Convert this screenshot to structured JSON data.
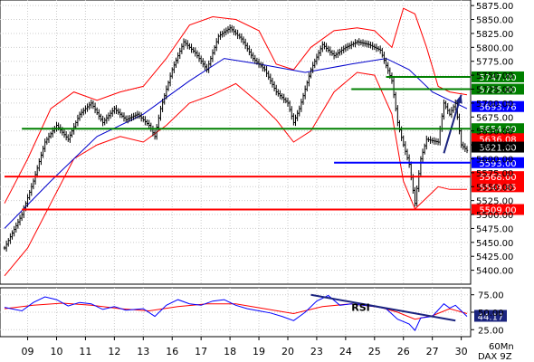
{
  "chart_data": {
    "type": "candlestick",
    "instrument_label": "DAX 9Z",
    "timeframe_label": "60Mn",
    "price_axis": {
      "ylim": [
        5375,
        5885
      ],
      "ticks": [
        5400,
        5425,
        5450,
        5475,
        5500,
        5525,
        5550,
        5575,
        5600,
        5625,
        5650,
        5675,
        5700,
        5725,
        5750,
        5775,
        5800,
        5825,
        5850,
        5875
      ],
      "tick_labels": [
        "5400.00",
        "5425.00",
        "5450.00",
        "5475.00",
        "5500.00",
        "5525.00",
        "5550.00",
        "5575.00",
        "5600.00",
        "5625.00",
        "5650.00",
        "5675.00",
        "5700.00",
        "5725.00",
        "5750.00",
        "5775.00",
        "5800.00",
        "5825.00",
        "5850.00",
        "5875.00"
      ]
    },
    "x_axis": {
      "day_labels": [
        "09",
        "10",
        "11",
        "12",
        "13",
        "16",
        "17",
        "18",
        "19",
        "20",
        "23",
        "24",
        "25",
        "26",
        "27",
        "30"
      ]
    },
    "price_path": [
      [
        0,
        5440
      ],
      [
        3,
        5500
      ],
      [
        5,
        5560
      ],
      [
        7,
        5630
      ],
      [
        9,
        5660
      ],
      [
        11,
        5635
      ],
      [
        13,
        5680
      ],
      [
        15,
        5700
      ],
      [
        17,
        5665
      ],
      [
        19,
        5690
      ],
      [
        21,
        5670
      ],
      [
        23,
        5680
      ],
      [
        25,
        5660
      ],
      [
        26,
        5640
      ],
      [
        27,
        5690
      ],
      [
        29,
        5760
      ],
      [
        31,
        5810
      ],
      [
        33,
        5790
      ],
      [
        35,
        5760
      ],
      [
        37,
        5820
      ],
      [
        39,
        5835
      ],
      [
        41,
        5815
      ],
      [
        43,
        5780
      ],
      [
        45,
        5760
      ],
      [
        47,
        5720
      ],
      [
        49,
        5700
      ],
      [
        50,
        5665
      ],
      [
        51,
        5690
      ],
      [
        53,
        5760
      ],
      [
        55,
        5805
      ],
      [
        57,
        5785
      ],
      [
        59,
        5800
      ],
      [
        61,
        5810
      ],
      [
        63,
        5805
      ],
      [
        65,
        5795
      ],
      [
        67,
        5740
      ],
      [
        68,
        5665
      ],
      [
        69,
        5625
      ],
      [
        70,
        5590
      ],
      [
        71,
        5520
      ],
      [
        72,
        5600
      ],
      [
        73,
        5635
      ],
      [
        75,
        5630
      ],
      [
        76,
        5700
      ],
      [
        77,
        5680
      ],
      [
        78,
        5700
      ],
      [
        79,
        5625
      ],
      [
        80,
        5615
      ]
    ],
    "moving_average": [
      [
        0,
        5475
      ],
      [
        8,
        5560
      ],
      [
        16,
        5640
      ],
      [
        24,
        5680
      ],
      [
        32,
        5740
      ],
      [
        38,
        5780
      ],
      [
        44,
        5770
      ],
      [
        52,
        5755
      ],
      [
        60,
        5770
      ],
      [
        66,
        5780
      ],
      [
        70,
        5760
      ],
      [
        74,
        5720
      ],
      [
        80,
        5690
      ]
    ],
    "bollinger_upper": [
      [
        0,
        5520
      ],
      [
        4,
        5600
      ],
      [
        8,
        5690
      ],
      [
        12,
        5720
      ],
      [
        16,
        5705
      ],
      [
        20,
        5720
      ],
      [
        24,
        5730
      ],
      [
        28,
        5780
      ],
      [
        32,
        5840
      ],
      [
        36,
        5855
      ],
      [
        40,
        5850
      ],
      [
        44,
        5830
      ],
      [
        47,
        5770
      ],
      [
        50,
        5760
      ],
      [
        53,
        5800
      ],
      [
        57,
        5830
      ],
      [
        61,
        5835
      ],
      [
        64,
        5830
      ],
      [
        67,
        5800
      ],
      [
        69,
        5870
      ],
      [
        71,
        5860
      ],
      [
        73,
        5800
      ],
      [
        75,
        5730
      ],
      [
        77,
        5720
      ],
      [
        80,
        5715
      ]
    ],
    "bollinger_lower": [
      [
        0,
        5390
      ],
      [
        4,
        5440
      ],
      [
        8,
        5520
      ],
      [
        12,
        5600
      ],
      [
        16,
        5625
      ],
      [
        20,
        5640
      ],
      [
        24,
        5630
      ],
      [
        28,
        5660
      ],
      [
        32,
        5700
      ],
      [
        36,
        5715
      ],
      [
        40,
        5735
      ],
      [
        44,
        5700
      ],
      [
        47,
        5670
      ],
      [
        50,
        5630
      ],
      [
        53,
        5650
      ],
      [
        57,
        5720
      ],
      [
        61,
        5755
      ],
      [
        64,
        5750
      ],
      [
        67,
        5680
      ],
      [
        69,
        5560
      ],
      [
        71,
        5510
      ],
      [
        73,
        5530
      ],
      [
        75,
        5550
      ],
      [
        77,
        5545
      ],
      [
        80,
        5545
      ]
    ],
    "support_resistance_lines": [
      {
        "price": 5747.0,
        "label": "5747.00",
        "color": "#008000",
        "x_from": 66
      },
      {
        "price": 5725.0,
        "label": "5725.00",
        "color": "#008000",
        "x_from": 60
      },
      {
        "price": 5693.76,
        "label": "5693.76",
        "color": "#0000ff",
        "x_from": null
      },
      {
        "price": 5654.0,
        "label": "5654.00",
        "color": "#008000",
        "x_from": 3
      },
      {
        "price": 5636.08,
        "label": "5636.08",
        "color": "#ff0000",
        "x_from": null
      },
      {
        "price": 5621.0,
        "label": "5621.00",
        "color": "#000000",
        "x_from": null
      },
      {
        "price": 5593.0,
        "label": "5593.00",
        "color": "#0000ff",
        "x_from": 57
      },
      {
        "price": 5568.0,
        "label": "5568.00",
        "color": "#ff0000",
        "x_from": 0
      },
      {
        "price": 5549.85,
        "label": "5549.85",
        "color": "#ff0000",
        "x_from": null
      },
      {
        "price": 5509.0,
        "label": "5509.00",
        "color": "#ff0000",
        "x_from": 3
      }
    ],
    "arrow": {
      "from": [
        76,
        5610
      ],
      "to": [
        79,
        5715
      ],
      "color": "#1a237e"
    },
    "rsi_panel": {
      "label": "RSI",
      "ylim": [
        15,
        85
      ],
      "ticks": [
        25,
        50,
        75
      ],
      "tick_labels": [
        "25.00",
        "50.00",
        "75.00"
      ],
      "current_value": "44.17",
      "rsi_path": [
        [
          0,
          57
        ],
        [
          3,
          52
        ],
        [
          5,
          64
        ],
        [
          7,
          72
        ],
        [
          9,
          68
        ],
        [
          11,
          59
        ],
        [
          13,
          64
        ],
        [
          15,
          62
        ],
        [
          17,
          54
        ],
        [
          19,
          58
        ],
        [
          21,
          53
        ],
        [
          24,
          55
        ],
        [
          26,
          44
        ],
        [
          28,
          60
        ],
        [
          30,
          68
        ],
        [
          32,
          62
        ],
        [
          34,
          60
        ],
        [
          36,
          66
        ],
        [
          38,
          68
        ],
        [
          40,
          60
        ],
        [
          42,
          55
        ],
        [
          44,
          52
        ],
        [
          46,
          49
        ],
        [
          48,
          44
        ],
        [
          50,
          38
        ],
        [
          52,
          50
        ],
        [
          54,
          66
        ],
        [
          56,
          74
        ],
        [
          58,
          60
        ],
        [
          60,
          62
        ],
        [
          62,
          60
        ],
        [
          64,
          58
        ],
        [
          66,
          55
        ],
        [
          68,
          40
        ],
        [
          70,
          33
        ],
        [
          71,
          24
        ],
        [
          72,
          42
        ],
        [
          74,
          44
        ],
        [
          76,
          62
        ],
        [
          77,
          56
        ],
        [
          78,
          60
        ],
        [
          80,
          44
        ]
      ],
      "signal_path": [
        [
          0,
          55
        ],
        [
          5,
          60
        ],
        [
          10,
          63
        ],
        [
          15,
          60
        ],
        [
          20,
          55
        ],
        [
          25,
          52
        ],
        [
          30,
          58
        ],
        [
          35,
          62
        ],
        [
          40,
          62
        ],
        [
          45,
          55
        ],
        [
          50,
          48
        ],
        [
          55,
          58
        ],
        [
          60,
          62
        ],
        [
          65,
          57
        ],
        [
          68,
          50
        ],
        [
          71,
          40
        ],
        [
          74,
          45
        ],
        [
          77,
          55
        ],
        [
          80,
          48
        ]
      ],
      "trend_line": {
        "from": [
          53,
          75
        ],
        "to": [
          78,
          38
        ],
        "color": "#1a237e"
      }
    },
    "colors": {
      "price": "#000000",
      "moving_average": "#0000cc",
      "bands": "#ff0000",
      "rsi": "#0000ff",
      "rsi_signal": "#ff0000",
      "grid": "#cccccc"
    },
    "grid": true
  }
}
